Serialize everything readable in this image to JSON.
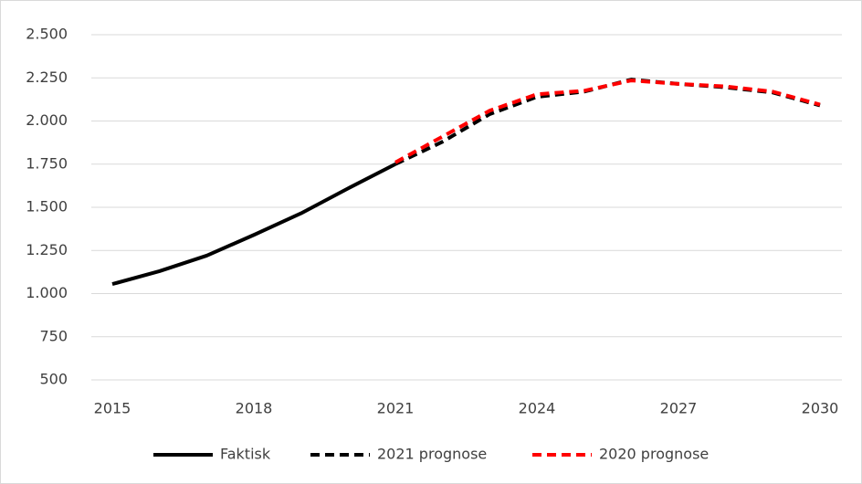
{
  "chart_data": {
    "type": "line",
    "x": [
      2015,
      2016,
      2017,
      2018,
      2019,
      2020,
      2021,
      2022,
      2023,
      2024,
      2025,
      2026,
      2027,
      2028,
      2029,
      2030
    ],
    "series": [
      {
        "name": "Faktisk",
        "color": "#000000",
        "dash": false,
        "values": [
          1055,
          1130,
          1220,
          1340,
          1465,
          1610,
          1750,
          null,
          null,
          null,
          null,
          null,
          null,
          null,
          null,
          null
        ]
      },
      {
        "name": "2021 prognose",
        "color": "#000000",
        "dash": true,
        "values": [
          null,
          null,
          null,
          null,
          null,
          null,
          1750,
          1880,
          2040,
          2140,
          2170,
          2240,
          2215,
          2195,
          2165,
          2090
        ]
      },
      {
        "name": "2020 prognose",
        "color": "#ff0000",
        "dash": true,
        "values": [
          null,
          null,
          null,
          null,
          null,
          null,
          1760,
          1910,
          2060,
          2155,
          2175,
          2235,
          2215,
          2200,
          2170,
          2095
        ]
      }
    ],
    "xlim": [
      2015,
      2030
    ],
    "xticks": [
      2015,
      2018,
      2021,
      2024,
      2027,
      2030
    ],
    "ylim": [
      500,
      2500
    ],
    "yticks": [
      500,
      750,
      {
        "value": 1000,
        "label": "1.000"
      },
      {
        "value": 1250,
        "label": "1.250"
      },
      {
        "value": 1500,
        "label": "1.500"
      },
      {
        "value": 1750,
        "label": "1.750"
      },
      {
        "value": 2000,
        "label": "2.000"
      },
      {
        "value": 2250,
        "label": "2.250"
      },
      {
        "value": 2500,
        "label": "2.500"
      }
    ],
    "grid": true,
    "legend": "bottom"
  }
}
